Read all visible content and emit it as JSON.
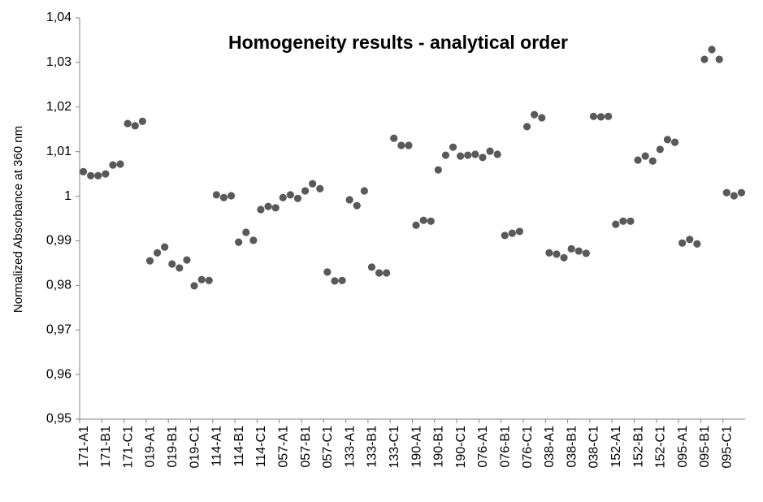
{
  "chart_data": {
    "type": "scatter",
    "title": "Homogeneity results - analytical order",
    "y_label": "Normalized Absorbance at 360 nm",
    "categories": [
      "171-A1",
      null,
      null,
      "171-B1",
      null,
      null,
      "171-C1",
      null,
      null,
      "019-A1",
      null,
      null,
      "019-B1",
      null,
      null,
      "019-C1",
      null,
      null,
      "114-A1",
      null,
      null,
      "114-B1",
      null,
      null,
      "114-C1",
      null,
      null,
      "057-A1",
      null,
      null,
      "057-B1",
      null,
      null,
      "057-C1",
      null,
      null,
      "133-A1",
      null,
      null,
      "133-B1",
      null,
      null,
      "133-C1",
      null,
      null,
      "190-A1",
      null,
      null,
      "190-B1",
      null,
      null,
      "190-C1",
      null,
      null,
      "076-A1",
      null,
      null,
      "076-B1",
      null,
      null,
      "076-C1",
      null,
      null,
      "038-A1",
      null,
      null,
      "038-B1",
      null,
      null,
      "038-C1",
      null,
      null,
      "152-A1",
      null,
      null,
      "152-B1",
      null,
      null,
      "152-C1",
      null,
      null,
      "095-A1",
      null,
      null,
      "095-B1",
      null,
      null,
      "095-C1",
      null,
      null
    ],
    "values": [
      1.0055,
      1.0046,
      1.0046,
      1.005,
      1.007,
      1.0072,
      1.0163,
      1.0158,
      1.0168,
      0.9855,
      0.9873,
      0.9886,
      0.9848,
      0.9839,
      0.9857,
      0.9799,
      0.9813,
      0.9811,
      1.0003,
      0.9997,
      1.0001,
      0.9897,
      0.9919,
      0.9901,
      0.997,
      0.9977,
      0.9974,
      0.9997,
      1.0003,
      0.9995,
      1.0012,
      1.0028,
      1.0017,
      0.983,
      0.981,
      0.9811,
      0.9992,
      0.9979,
      1.0012,
      0.9841,
      0.9828,
      0.9828,
      1.013,
      1.0114,
      1.0114,
      0.9935,
      0.9946,
      0.9944,
      1.0059,
      1.0092,
      1.011,
      1.009,
      1.0092,
      1.0094,
      1.0087,
      1.0101,
      1.0094,
      0.9912,
      0.9917,
      0.9921,
      1.0156,
      1.0183,
      1.0176,
      0.9873,
      0.987,
      0.9862,
      0.9882,
      0.9877,
      0.9872,
      1.0179,
      1.0178,
      1.0179,
      0.9937,
      0.9944,
      0.9944,
      1.0081,
      1.009,
      1.0079,
      1.0105,
      1.0127,
      1.0121,
      0.9895,
      0.9903,
      0.9893,
      1.0307,
      1.0329,
      1.0307,
      1.0008,
      1.0001,
      1.0008
    ],
    "color": "#595959",
    "ylim": [
      0.95,
      1.04
    ],
    "yticks": [
      {
        "value": 0.95,
        "label": "0,95"
      },
      {
        "value": 0.96,
        "label": "0,96"
      },
      {
        "value": 0.97,
        "label": "0,97"
      },
      {
        "value": 0.98,
        "label": "0,98"
      },
      {
        "value": 0.99,
        "label": "0,99"
      },
      1,
      {
        "value": 1.01,
        "label": "1,01"
      },
      {
        "value": 1.02,
        "label": "1,02"
      },
      {
        "value": 1.03,
        "label": "1,03"
      },
      {
        "value": 1.04,
        "label": "1,04"
      }
    ],
    "grid": false
  }
}
